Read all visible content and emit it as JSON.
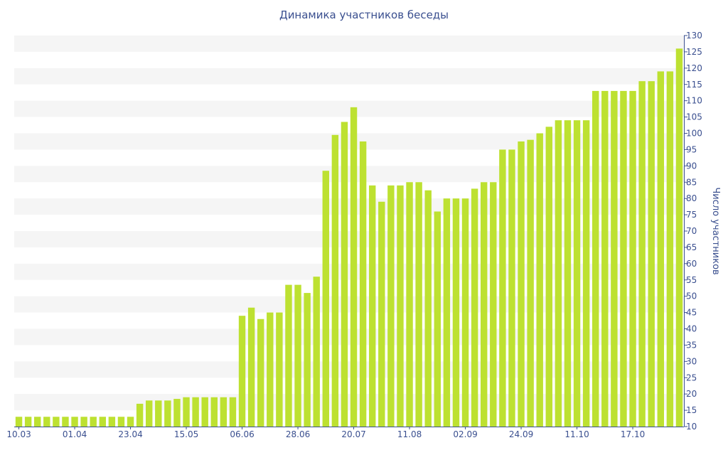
{
  "chart_data": {
    "type": "bar",
    "title": "Динамика участников беседы",
    "ylabel": "Число участников",
    "xlabel": "",
    "ylim": [
      10,
      130
    ],
    "ytick_step": 5,
    "y_axis_side": "right",
    "grid": "alternating horizontal bands",
    "bar_color": "#bde131",
    "text_color": "#3a4f8f",
    "band_color": "#f5f5f5",
    "x_tick_labels": [
      {
        "label": "10.03",
        "index": 0
      },
      {
        "label": "01.04",
        "index": 6
      },
      {
        "label": "23.04",
        "index": 12
      },
      {
        "label": "15.05",
        "index": 18
      },
      {
        "label": "06.06",
        "index": 24
      },
      {
        "label": "28.06",
        "index": 30
      },
      {
        "label": "20.07",
        "index": 36
      },
      {
        "label": "11.08",
        "index": 42
      },
      {
        "label": "02.09",
        "index": 48
      },
      {
        "label": "24.09",
        "index": 54
      },
      {
        "label": "11.10",
        "index": 60
      },
      {
        "label": "17.10",
        "index": 66
      }
    ],
    "values": [
      13,
      13,
      13,
      13,
      13,
      13,
      13,
      13,
      13,
      13,
      13,
      13,
      13,
      17,
      18,
      18,
      18,
      18.5,
      19,
      19,
      19,
      19,
      19,
      19,
      44,
      46.5,
      43,
      45,
      45,
      53.5,
      53.5,
      51,
      56,
      88.5,
      99.5,
      103.5,
      108,
      97.5,
      84,
      79,
      84,
      84,
      85,
      85,
      82.5,
      76,
      80,
      80,
      80,
      83,
      85,
      85,
      95,
      95,
      97.5,
      98,
      100,
      102,
      104,
      104,
      104,
      104,
      113,
      113,
      113,
      113,
      113,
      116,
      116,
      119,
      119,
      126
    ]
  }
}
